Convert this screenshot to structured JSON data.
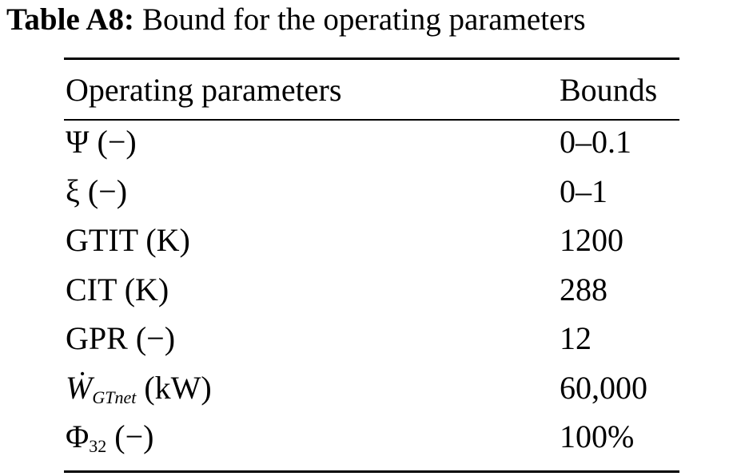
{
  "table": {
    "label": "Table A8:",
    "title": "Bound for the operating parameters",
    "header": [
      "Operating parameters",
      "Bounds"
    ],
    "rows": [
      [
        {
          "main": "Ψ (−)"
        },
        "0–0.1"
      ],
      [
        {
          "main": "ξ (−)"
        },
        "0–1"
      ],
      [
        {
          "main": "GTIT (K)"
        },
        "1200"
      ],
      [
        {
          "main": "CIT (K)"
        },
        "288"
      ],
      [
        {
          "main": "GPR (−)"
        },
        "12"
      ],
      [
        {
          "main": "Ẇ",
          "sub": "GTnet",
          "rest": "(kW)"
        },
        "60,000"
      ],
      [
        {
          "main": "Φ",
          "sub": "32",
          "rest": "(−)"
        },
        "100%"
      ]
    ]
  }
}
